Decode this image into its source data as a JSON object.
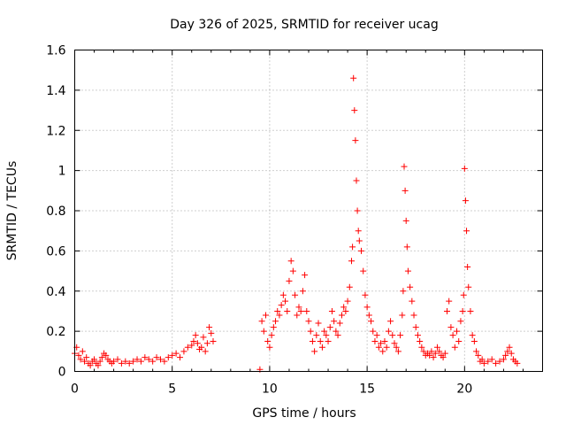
{
  "chart_data": {
    "type": "scatter",
    "title": "Day 326 of 2025, SRMTID for receiver ucag",
    "xlabel": "GPS time / hours",
    "ylabel": "SRMTID / TECUs",
    "xlim": [
      0,
      24
    ],
    "ylim": [
      0,
      1.6
    ],
    "xticks": [
      0,
      5,
      10,
      15,
      20
    ],
    "yticks": [
      0,
      0.2,
      0.4,
      0.6,
      0.8,
      1,
      1.2,
      1.4,
      1.6
    ],
    "xtick_labels": [
      "0",
      "5",
      "10",
      "15",
      "20"
    ],
    "ytick_labels": [
      "0",
      "0.2",
      "0.4",
      "0.6",
      "0.8",
      "1",
      "1.2",
      "1.4",
      "1.6"
    ],
    "grid": true,
    "marker": "+",
    "color": "#ff0000",
    "series": [
      {
        "name": "SRMTID",
        "x": [
          0.0,
          0.1,
          0.2,
          0.3,
          0.4,
          0.5,
          0.6,
          0.7,
          0.8,
          0.9,
          1.0,
          1.1,
          1.2,
          1.3,
          1.4,
          1.5,
          1.6,
          1.7,
          1.8,
          1.9,
          2.0,
          2.2,
          2.4,
          2.6,
          2.8,
          3.0,
          3.2,
          3.4,
          3.6,
          3.8,
          4.0,
          4.2,
          4.4,
          4.6,
          4.8,
          5.0,
          5.2,
          5.4,
          5.6,
          5.8,
          6.0,
          6.1,
          6.2,
          6.3,
          6.4,
          6.5,
          6.6,
          6.7,
          6.8,
          6.9,
          7.0,
          7.1,
          9.5,
          9.6,
          9.7,
          9.8,
          9.9,
          10.0,
          10.1,
          10.2,
          10.3,
          10.4,
          10.5,
          10.6,
          10.7,
          10.8,
          10.9,
          11.0,
          11.1,
          11.2,
          11.3,
          11.4,
          11.5,
          11.6,
          11.7,
          11.8,
          11.9,
          12.0,
          12.1,
          12.2,
          12.3,
          12.4,
          12.5,
          12.6,
          12.7,
          12.8,
          12.9,
          13.0,
          13.1,
          13.2,
          13.3,
          13.4,
          13.5,
          13.6,
          13.7,
          13.8,
          13.9,
          14.0,
          14.1,
          14.2,
          14.25,
          14.3,
          14.35,
          14.4,
          14.45,
          14.5,
          14.55,
          14.6,
          14.7,
          14.8,
          14.9,
          15.0,
          15.1,
          15.2,
          15.3,
          15.4,
          15.5,
          15.6,
          15.7,
          15.8,
          15.9,
          16.0,
          16.1,
          16.2,
          16.3,
          16.4,
          16.5,
          16.6,
          16.7,
          16.8,
          16.85,
          16.9,
          16.95,
          17.0,
          17.05,
          17.1,
          17.2,
          17.3,
          17.4,
          17.5,
          17.6,
          17.7,
          17.8,
          17.9,
          18.0,
          18.1,
          18.2,
          18.3,
          18.4,
          18.5,
          18.6,
          18.7,
          18.8,
          18.9,
          19.0,
          19.1,
          19.2,
          19.3,
          19.4,
          19.5,
          19.6,
          19.7,
          19.8,
          19.9,
          19.95,
          20.0,
          20.05,
          20.1,
          20.15,
          20.2,
          20.3,
          20.4,
          20.5,
          20.6,
          20.7,
          20.8,
          20.9,
          21.0,
          21.2,
          21.4,
          21.6,
          21.8,
          22.0,
          22.1,
          22.2,
          22.3,
          22.4,
          22.5,
          22.6,
          22.7
        ],
        "y": [
          0.09,
          0.12,
          0.08,
          0.06,
          0.1,
          0.05,
          0.07,
          0.04,
          0.03,
          0.05,
          0.06,
          0.04,
          0.03,
          0.05,
          0.07,
          0.09,
          0.08,
          0.06,
          0.05,
          0.04,
          0.05,
          0.06,
          0.04,
          0.05,
          0.04,
          0.05,
          0.06,
          0.05,
          0.07,
          0.06,
          0.05,
          0.07,
          0.06,
          0.05,
          0.07,
          0.08,
          0.09,
          0.07,
          0.1,
          0.12,
          0.13,
          0.15,
          0.18,
          0.14,
          0.11,
          0.12,
          0.17,
          0.1,
          0.14,
          0.22,
          0.19,
          0.15,
          0.01,
          0.25,
          0.2,
          0.28,
          0.15,
          0.12,
          0.18,
          0.22,
          0.25,
          0.3,
          0.28,
          0.33,
          0.38,
          0.35,
          0.3,
          0.45,
          0.55,
          0.5,
          0.38,
          0.28,
          0.32,
          0.3,
          0.4,
          0.48,
          0.3,
          0.25,
          0.2,
          0.15,
          0.1,
          0.18,
          0.24,
          0.15,
          0.12,
          0.2,
          0.18,
          0.15,
          0.22,
          0.3,
          0.25,
          0.2,
          0.18,
          0.24,
          0.28,
          0.32,
          0.3,
          0.35,
          0.42,
          0.55,
          0.62,
          1.46,
          1.3,
          1.15,
          0.95,
          0.8,
          0.7,
          0.65,
          0.6,
          0.5,
          0.38,
          0.32,
          0.28,
          0.25,
          0.2,
          0.15,
          0.18,
          0.12,
          0.14,
          0.1,
          0.15,
          0.12,
          0.2,
          0.25,
          0.18,
          0.14,
          0.12,
          0.1,
          0.18,
          0.28,
          0.4,
          1.02,
          0.9,
          0.75,
          0.62,
          0.5,
          0.42,
          0.35,
          0.28,
          0.22,
          0.18,
          0.15,
          0.12,
          0.1,
          0.08,
          0.09,
          0.08,
          0.1,
          0.07,
          0.09,
          0.12,
          0.1,
          0.08,
          0.07,
          0.09,
          0.3,
          0.35,
          0.22,
          0.18,
          0.12,
          0.2,
          0.15,
          0.25,
          0.3,
          0.38,
          1.01,
          0.85,
          0.7,
          0.52,
          0.42,
          0.3,
          0.18,
          0.15,
          0.1,
          0.08,
          0.05,
          0.06,
          0.04,
          0.05,
          0.06,
          0.04,
          0.05,
          0.06,
          0.08,
          0.1,
          0.12,
          0.09,
          0.06,
          0.05,
          0.04
        ]
      }
    ]
  }
}
